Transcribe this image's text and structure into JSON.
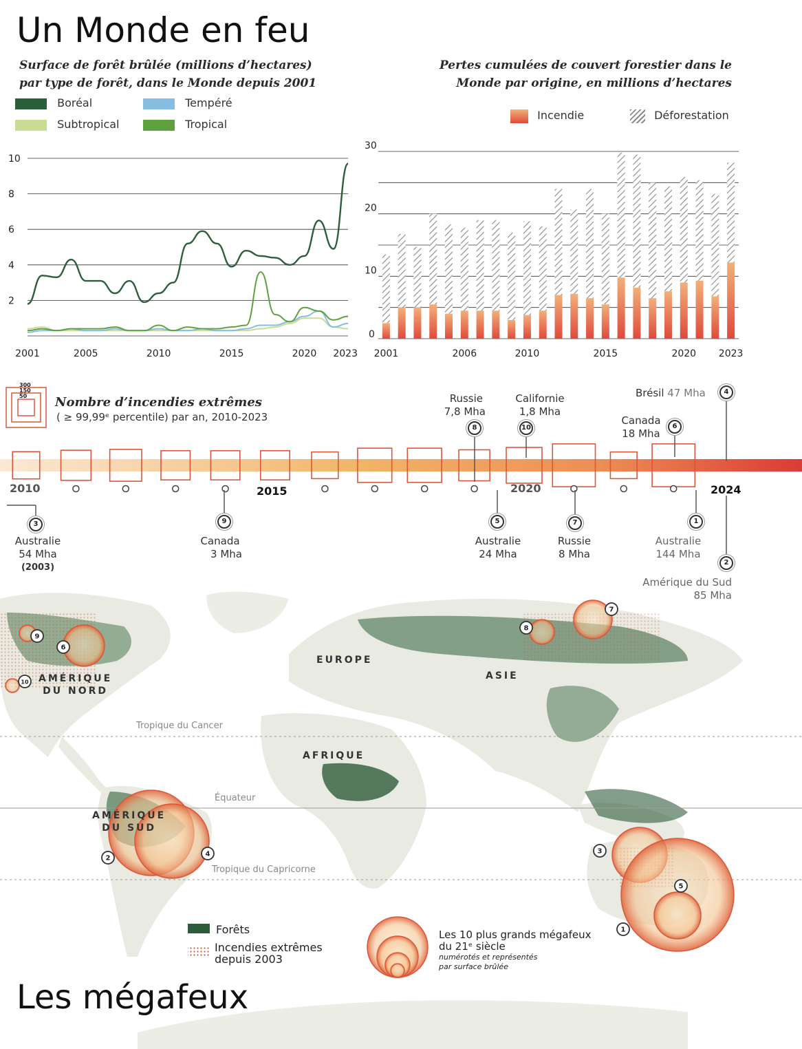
{
  "title": "Un Monde en feu",
  "line_chart": {
    "subtitle_line1": "Surface de forêt brûlée (millions d’hectares)",
    "subtitle_line2": "par type de forêt, dans le Monde depuis 2001",
    "legend": [
      {
        "label": "Boréal",
        "color": "#2d5e3c"
      },
      {
        "label": "Tempéré",
        "color": "#86bde0"
      },
      {
        "label": "Subtropical",
        "color": "#c8dc93"
      },
      {
        "label": "Tropical",
        "color": "#5fa03f"
      }
    ],
    "y_ticks": [
      "10",
      "8",
      "6",
      "4",
      "2"
    ],
    "x_ticks": [
      "2001",
      "2005",
      "2010",
      "2015",
      "2020",
      "2023"
    ]
  },
  "bar_chart": {
    "subtitle_line1": "Pertes cumulées de couvert forestier dans le",
    "subtitle_line2": "Monde par origine, en millions d’hectares",
    "legend_fire": "Incendie",
    "legend_deforest": "Déforestation",
    "y_ticks": [
      "30",
      "20",
      "10",
      "0"
    ],
    "x_ticks": [
      "2001",
      "2006",
      "2010",
      "2015",
      "2020",
      "2023"
    ]
  },
  "chart_data": [
    {
      "type": "line",
      "x": [
        2001,
        2002,
        2003,
        2004,
        2005,
        2006,
        2007,
        2008,
        2009,
        2010,
        2011,
        2012,
        2013,
        2014,
        2015,
        2016,
        2017,
        2018,
        2019,
        2020,
        2021,
        2022,
        2023
      ],
      "series": [
        {
          "name": "Boréal",
          "values": [
            1.8,
            3.4,
            3.3,
            4.3,
            3.1,
            3.1,
            2.4,
            3.1,
            1.9,
            2.4,
            3.0,
            5.2,
            5.9,
            5.2,
            3.9,
            4.8,
            4.5,
            4.4,
            4.0,
            4.5,
            6.5,
            4.9,
            9.7
          ]
        },
        {
          "name": "Tempéré",
          "values": [
            0.2,
            0.3,
            0.3,
            0.4,
            0.3,
            0.3,
            0.4,
            0.3,
            0.3,
            0.4,
            0.3,
            0.3,
            0.4,
            0.3,
            0.3,
            0.4,
            0.6,
            0.6,
            0.8,
            1.1,
            1.4,
            0.5,
            0.7
          ]
        },
        {
          "name": "Subtropical",
          "values": [
            0.4,
            0.5,
            0.3,
            0.3,
            0.3,
            0.3,
            0.3,
            0.3,
            0.3,
            0.3,
            0.3,
            0.3,
            0.3,
            0.3,
            0.3,
            0.3,
            0.4,
            0.5,
            0.7,
            1.0,
            1.0,
            0.5,
            0.4
          ]
        },
        {
          "name": "Tropical",
          "values": [
            0.3,
            0.4,
            0.3,
            0.4,
            0.4,
            0.4,
            0.5,
            0.3,
            0.3,
            0.6,
            0.3,
            0.5,
            0.4,
            0.4,
            0.5,
            0.6,
            3.6,
            1.2,
            0.8,
            1.6,
            1.4,
            0.9,
            1.1
          ]
        }
      ],
      "ylim": [
        0,
        10
      ]
    },
    {
      "type": "bar",
      "stacked": true,
      "categories": [
        2001,
        2002,
        2003,
        2004,
        2005,
        2006,
        2007,
        2008,
        2009,
        2010,
        2011,
        2012,
        2013,
        2014,
        2015,
        2016,
        2017,
        2018,
        2019,
        2020,
        2021,
        2022,
        2023
      ],
      "series": [
        {
          "name": "Incendie",
          "values": [
            2.5,
            5,
            5,
            5.5,
            4,
            4.5,
            4.5,
            4.5,
            3,
            3.8,
            4.5,
            7,
            7.2,
            6.5,
            5.5,
            9.8,
            8.2,
            6.5,
            7.6,
            9,
            9.3,
            6.8,
            12.2
          ]
        },
        {
          "name": "Déforestation",
          "values": [
            11,
            11.8,
            9.7,
            14.5,
            14.3,
            13.3,
            14.5,
            14.5,
            14,
            15,
            13.5,
            17,
            13.5,
            17.5,
            14.5,
            20,
            21.3,
            18.5,
            16.8,
            16.9,
            16.1,
            16.4,
            16
          ]
        }
      ],
      "ylim": [
        0,
        30
      ]
    }
  ],
  "timeline": {
    "legend_title": "Nombre d’incendies extrêmes",
    "legend_sub": "( ≥ 99,99ᵉ percentile) par an, 2010-2023",
    "legend_scale": [
      "300",
      "150",
      "50"
    ],
    "year_labels": [
      {
        "text": "2010",
        "year": 2010
      },
      {
        "text": "2015",
        "year": 2015
      },
      {
        "text": "2020",
        "year": 2020
      },
      {
        "text": "2024",
        "year": 2024
      }
    ],
    "counts": [
      {
        "year": 2010,
        "count": 90
      },
      {
        "year": 2011,
        "count": 120
      },
      {
        "year": 2012,
        "count": 140
      },
      {
        "year": 2013,
        "count": 110
      },
      {
        "year": 2014,
        "count": 110
      },
      {
        "year": 2015,
        "count": 110
      },
      {
        "year": 2016,
        "count": 85
      },
      {
        "year": 2017,
        "count": 170
      },
      {
        "year": 2018,
        "count": 170
      },
      {
        "year": 2019,
        "count": 130
      },
      {
        "year": 2020,
        "count": 190
      },
      {
        "year": 2021,
        "count": 300
      },
      {
        "year": 2022,
        "count": 85
      },
      {
        "year": 2023,
        "count": 300
      }
    ],
    "events": [
      {
        "num": "3",
        "name": "Australie",
        "area": "54 Mha",
        "note": "(2003)"
      },
      {
        "num": "9",
        "name": "Canada",
        "area": "3 Mha"
      },
      {
        "num": "8",
        "name": "Russie",
        "area": "7,8 Mha"
      },
      {
        "num": "5",
        "name": "Australie",
        "area": "24 Mha"
      },
      {
        "num": "10",
        "name": "Californie",
        "area": "1,8 Mha"
      },
      {
        "num": "7",
        "name": "Russie",
        "area": "8 Mha"
      },
      {
        "num": "6",
        "name": "Canada",
        "area": "18 Mha"
      },
      {
        "num": "1",
        "name": "Australie",
        "area": "144 Mha"
      },
      {
        "num": "4",
        "name": "Brésil",
        "area": "47 Mha"
      },
      {
        "num": "2",
        "name": "Amérique du Sud",
        "area": "85 Mha"
      }
    ]
  },
  "map": {
    "continents": {
      "north_america_1": "AMÉRIQUE",
      "north_america_2": "DU NORD",
      "europe": "EUROPE",
      "asia": "ASIE",
      "africa": "AFRIQUE",
      "south_america_1": "AMÉRIQUE",
      "south_america_2": "DU SUD"
    },
    "lines": {
      "cancer": "Tropique du Cancer",
      "equator": "Équateur",
      "capricorn": "Tropique du Capricorne"
    },
    "legend": {
      "forests": "Forêts",
      "fires_line1": "Incendies extrêmes",
      "fires_line2": "depuis 2003",
      "mega_line1": "Les 10 plus grands mégafeux",
      "mega_line2": "du 21ᵉ siècle",
      "mega_note1": "numérotés et représentés",
      "mega_note2": "par surface brûlée"
    },
    "colors": {
      "forest": "#2e5c3a",
      "land": "#e9ebe3",
      "fire": "#c95a35"
    }
  },
  "bottom_title": "Les mégafeux"
}
